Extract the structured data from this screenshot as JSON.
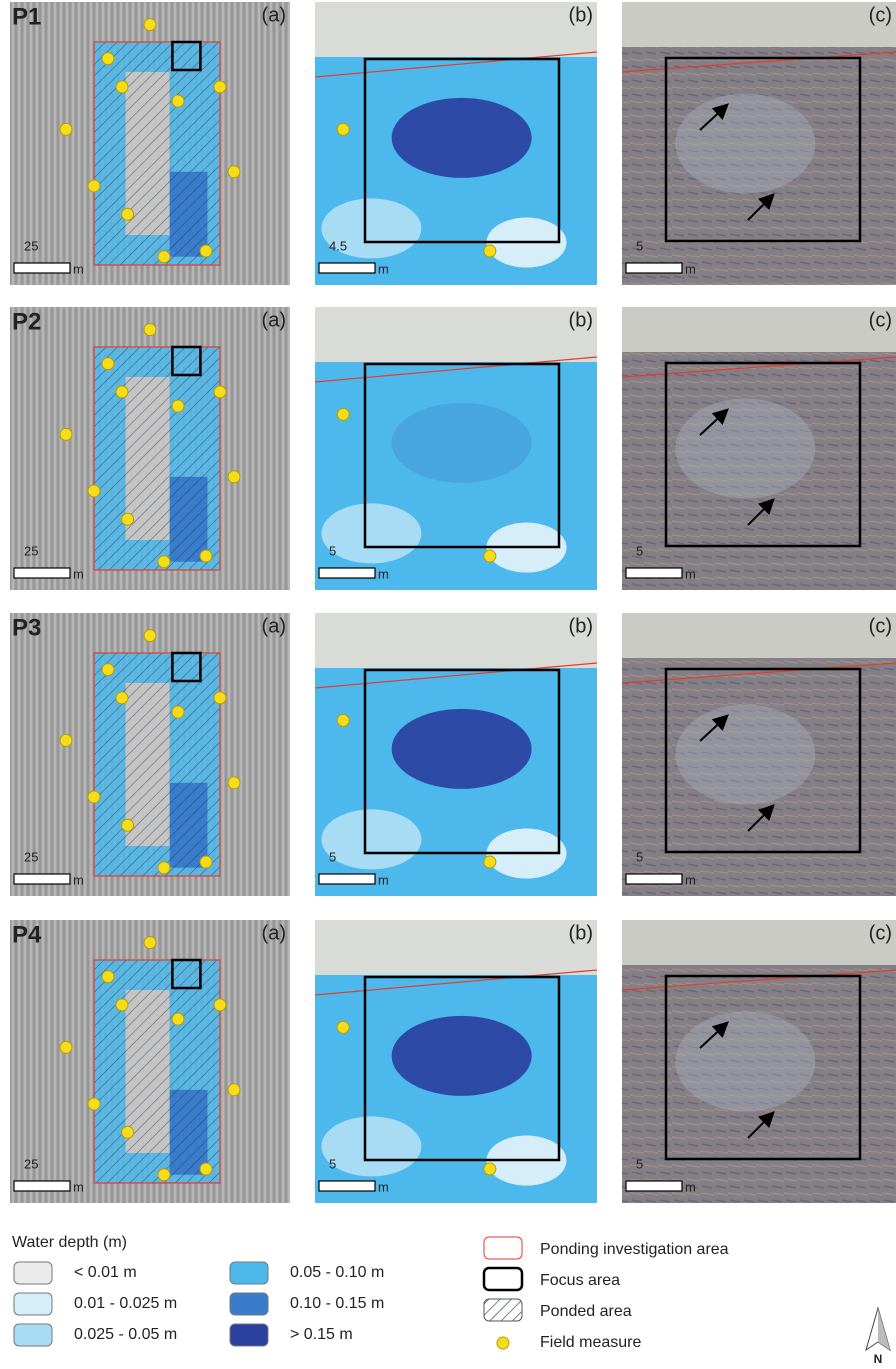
{
  "rows": [
    {
      "label": "P1",
      "panels": [
        {
          "tag": "(a)",
          "scale": "25",
          "unit": "m"
        },
        {
          "tag": "(b)",
          "scale": "4.5",
          "unit": "m"
        },
        {
          "tag": "(c)",
          "scale": "5",
          "unit": "m"
        }
      ]
    },
    {
      "label": "P2",
      "panels": [
        {
          "tag": "(a)",
          "scale": "25",
          "unit": "m"
        },
        {
          "tag": "(b)",
          "scale": "5",
          "unit": "m"
        },
        {
          "tag": "(c)",
          "scale": "5",
          "unit": "m"
        }
      ]
    },
    {
      "label": "P3",
      "panels": [
        {
          "tag": "(a)",
          "scale": "25",
          "unit": "m"
        },
        {
          "tag": "(b)",
          "scale": "5",
          "unit": "m"
        },
        {
          "tag": "(c)",
          "scale": "5",
          "unit": "m"
        }
      ]
    },
    {
      "label": "P4",
      "panels": [
        {
          "tag": "(a)",
          "scale": "25",
          "unit": "m"
        },
        {
          "tag": "(b)",
          "scale": "5",
          "unit": "m"
        },
        {
          "tag": "(c)",
          "scale": "5",
          "unit": "m"
        }
      ]
    }
  ],
  "legend": {
    "title": "Water depth (m)",
    "depth_classes": [
      {
        "label": "< 0.01 m",
        "color": "#ebebeb"
      },
      {
        "label": "0.01 - 0.025 m",
        "color": "#d6eef9"
      },
      {
        "label": "0.025 - 0.05 m",
        "color": "#a8dcf4"
      },
      {
        "label": "0.05 - 0.10 m",
        "color": "#4db8ec"
      },
      {
        "label": "0.10 - 0.15 m",
        "color": "#3a7ccc"
      },
      {
        "label": "> 0.15 m",
        "color": "#2a3f9e"
      }
    ],
    "symbols": [
      "Ponding investigation area",
      "Focus area",
      "Ponded area",
      "Field measure"
    ]
  },
  "north": "N"
}
